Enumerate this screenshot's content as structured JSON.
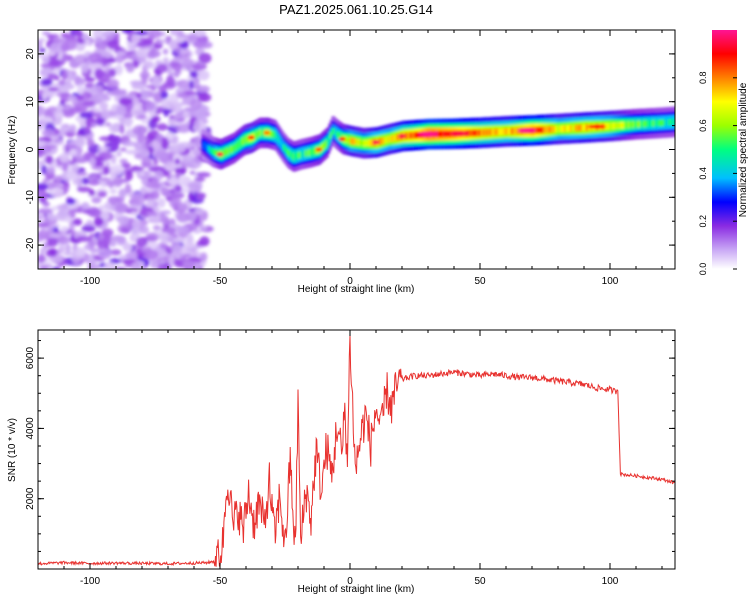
{
  "figure": {
    "title": "PAZ1.2025.061.10.25.G14"
  },
  "chart_data": [
    {
      "type": "heatmap",
      "xlabel": "Height of straight line (km)",
      "ylabel": "Frequency (Hz)",
      "xlim": [
        -120,
        125
      ],
      "ylim": [
        -25,
        25
      ],
      "x_ticks": [
        -100,
        -50,
        0,
        50,
        100
      ],
      "y_ticks": [
        -20,
        -10,
        0,
        10,
        20
      ],
      "colorbar": {
        "label": "Normalized spectral amplitude",
        "range": [
          0,
          1
        ],
        "ticks": [
          0.0,
          0.2,
          0.4,
          0.6,
          0.8
        ],
        "tick_labels": [
          "0.0",
          "0.2",
          "0.4",
          "0.6",
          "0.8"
        ],
        "colors": [
          "#ffffff",
          "#c9a8f5",
          "#8a2be2",
          "#0000ff",
          "#00bfff",
          "#00ff80",
          "#9cff00",
          "#ffff00",
          "#ff8000",
          "#ff0000",
          "#ff1493"
        ]
      },
      "noise_region": {
        "x": [
          -120,
          -55
        ],
        "y": [
          -25,
          25
        ],
        "intensity": 0.25
      },
      "ridge": {
        "x": [
          -57,
          -53,
          -50,
          -45,
          -41,
          -38,
          -35,
          -32,
          -29,
          -26,
          -24,
          -22,
          -19,
          -15,
          -12,
          -9,
          -7,
          -5,
          -3,
          0,
          5,
          10,
          15,
          20,
          25,
          30,
          40,
          50,
          60,
          70,
          80,
          90,
          100,
          110,
          120,
          125
        ],
        "y": [
          1.0,
          -0.5,
          -1.0,
          0.3,
          2.0,
          2.5,
          3.5,
          3.5,
          3.0,
          0.5,
          -0.8,
          -1.5,
          -1.0,
          -0.5,
          0.0,
          1.5,
          4.0,
          3.0,
          2.2,
          1.8,
          1.3,
          1.5,
          2.2,
          2.8,
          3.0,
          3.2,
          3.3,
          3.5,
          3.8,
          4.0,
          4.3,
          4.6,
          4.9,
          5.3,
          5.6,
          5.8
        ],
        "amplitude": [
          0.35,
          0.45,
          0.6,
          0.55,
          0.6,
          0.65,
          0.55,
          0.6,
          0.5,
          0.45,
          0.5,
          0.55,
          0.5,
          0.55,
          0.6,
          0.55,
          0.45,
          0.5,
          0.6,
          0.7,
          0.65,
          0.75,
          0.7,
          0.8,
          0.85,
          0.95,
          0.9,
          0.8,
          0.75,
          0.9,
          0.7,
          0.75,
          0.7,
          0.55,
          0.5,
          0.5
        ]
      }
    },
    {
      "type": "line",
      "xlabel": "Height of straight line (km)",
      "ylabel": "SNR (10 * v/v)",
      "xlim": [
        -120,
        125
      ],
      "ylim": [
        0,
        6800
      ],
      "x_ticks": [
        -100,
        -50,
        0,
        50,
        100
      ],
      "y_ticks": [
        2000,
        4000,
        6000
      ],
      "color": "#e8322f",
      "series": [
        {
          "x": [
            -120,
            -110,
            -100,
            -90,
            -80,
            -70,
            -60,
            -55,
            -52,
            -50,
            -49,
            -48,
            -47,
            -45,
            -43,
            -41,
            -39,
            -37,
            -35,
            -33,
            -31,
            -29,
            -27,
            -25,
            -23,
            -21,
            -20,
            -19,
            -17,
            -15,
            -13,
            -11,
            -9,
            -7,
            -5,
            -3,
            -2,
            -1,
            0,
            2,
            4,
            6,
            8,
            10,
            12,
            14,
            16,
            18,
            20,
            25,
            30,
            35,
            40,
            45,
            50,
            55,
            60,
            65,
            70,
            75,
            80,
            85,
            90,
            95,
            100,
            102,
            103,
            104,
            110,
            115,
            120,
            125
          ],
          "y": [
            150,
            180,
            160,
            170,
            160,
            150,
            170,
            180,
            220,
            350,
            700,
            1800,
            2700,
            1200,
            1700,
            1100,
            2200,
            1300,
            1900,
            1200,
            2500,
            900,
            2100,
            600,
            3100,
            400,
            4900,
            700,
            2300,
            1400,
            3400,
            2200,
            3500,
            2600,
            4100,
            3200,
            4700,
            3000,
            6600,
            2800,
            3700,
            4400,
            3500,
            4600,
            3900,
            5100,
            4600,
            5200,
            5400,
            5500,
            5500,
            5550,
            5600,
            5550,
            5500,
            5550,
            5500,
            5450,
            5450,
            5400,
            5350,
            5300,
            5250,
            5150,
            5100,
            5050,
            5100,
            2700,
            2650,
            2600,
            2550,
            2450
          ]
        }
      ]
    }
  ]
}
